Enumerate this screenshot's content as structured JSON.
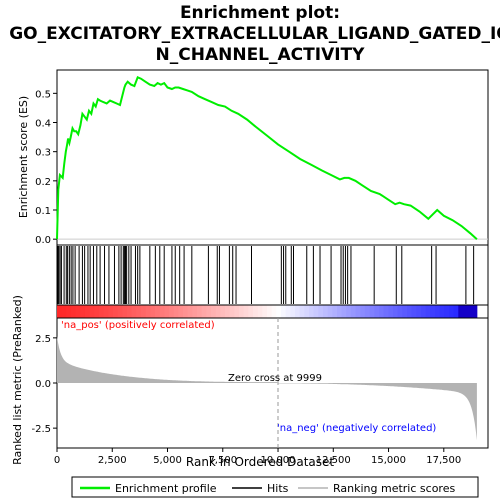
{
  "chart_data": {
    "type": "line",
    "title_line1": "Enrichment plot:",
    "title_line2": "GO_EXCITATORY_EXTRACELLULAR_LIGAND_GATED_IO",
    "title_line3": "N_CHANNEL_ACTIVITY",
    "xlabel": "Rank in Ordered Dataset",
    "ylabel_top": "Enrichment score (ES)",
    "ylabel_bottom": "Ranked list metric (PreRanked)",
    "x_ticks": [
      "0",
      "2,500",
      "5,000",
      "7,500",
      "10,000",
      "12,500",
      "15,000",
      "17,500"
    ],
    "x_tick_values": [
      0,
      2500,
      5000,
      7500,
      10000,
      12500,
      15000,
      17500
    ],
    "xlim": [
      0,
      19500
    ],
    "es_yticks": [
      "0.0",
      "0.1",
      "0.2",
      "0.3",
      "0.4",
      "0.5"
    ],
    "es_ytick_values": [
      0.0,
      0.1,
      0.2,
      0.3,
      0.4,
      0.5
    ],
    "es_ylim": [
      -0.02,
      0.58
    ],
    "metric_yticks": [
      "2.5",
      "0.0",
      "-2.5"
    ],
    "metric_ytick_values": [
      2.5,
      0.0,
      -2.5
    ],
    "metric_ylim": [
      -3.6,
      3.6
    ],
    "pos_label": "'na_pos' (positively correlated)",
    "neg_label": "'na_neg' (negatively correlated)",
    "zero_cross_label": "Zero cross at 9999",
    "zero_cross": 9999,
    "n_genes": 19000,
    "legend": [
      "Enrichment profile",
      "Hits",
      "Ranking metric scores"
    ],
    "colors": {
      "profile": "#00ee00",
      "hits": "#000000",
      "metric_fill": "#b3b3b3",
      "pos_bar": "#ff0000",
      "neg_bar": "#0000ff",
      "zero_line": "#999999"
    },
    "es_profile": {
      "x": [
        0,
        60,
        130,
        200,
        260,
        330,
        400,
        450,
        500,
        560,
        620,
        700,
        780,
        870,
        960,
        1060,
        1150,
        1250,
        1350,
        1450,
        1550,
        1650,
        1750,
        1850,
        1950,
        2100,
        2250,
        2400,
        2550,
        2700,
        2850,
        2950,
        3050,
        3100,
        3200,
        3350,
        3500,
        3650,
        3800,
        4000,
        4200,
        4400,
        4550,
        4700,
        4850,
        5000,
        5200,
        5350,
        5500,
        5700,
        5900,
        6100,
        6400,
        6700,
        7000,
        7300,
        7600,
        7900,
        8200,
        8600,
        9000,
        9500,
        10000,
        10500,
        11000,
        11500,
        12000,
        12400,
        12800,
        13000,
        13200,
        13500,
        13800,
        14200,
        14600,
        15000,
        15300,
        15500,
        15700,
        16000,
        16400,
        16800,
        17000,
        17200,
        17500,
        17900,
        18300,
        18700,
        19000
      ],
      "y": [
        0.0,
        0.17,
        0.22,
        0.215,
        0.21,
        0.26,
        0.3,
        0.32,
        0.345,
        0.33,
        0.35,
        0.38,
        0.37,
        0.37,
        0.36,
        0.39,
        0.43,
        0.42,
        0.41,
        0.44,
        0.43,
        0.465,
        0.455,
        0.48,
        0.475,
        0.47,
        0.465,
        0.475,
        0.47,
        0.465,
        0.46,
        0.49,
        0.52,
        0.53,
        0.54,
        0.53,
        0.525,
        0.555,
        0.55,
        0.54,
        0.53,
        0.525,
        0.535,
        0.53,
        0.535,
        0.52,
        0.515,
        0.52,
        0.52,
        0.515,
        0.51,
        0.505,
        0.49,
        0.48,
        0.47,
        0.46,
        0.455,
        0.44,
        0.43,
        0.41,
        0.385,
        0.355,
        0.325,
        0.3,
        0.275,
        0.255,
        0.235,
        0.22,
        0.205,
        0.21,
        0.21,
        0.2,
        0.185,
        0.165,
        0.155,
        0.135,
        0.12,
        0.125,
        0.12,
        0.115,
        0.095,
        0.07,
        0.085,
        0.1,
        0.08,
        0.065,
        0.045,
        0.02,
        0.0
      ]
    },
    "hits": [
      40,
      80,
      140,
      200,
      320,
      420,
      480,
      560,
      640,
      720,
      820,
      1000,
      1150,
      1250,
      1400,
      1500,
      1650,
      1800,
      1950,
      2150,
      2350,
      2600,
      2800,
      2900,
      3000,
      3050,
      3100,
      3150,
      3250,
      3350,
      3550,
      3650,
      3750,
      4200,
      4450,
      4650,
      4850,
      5200,
      5350,
      5550,
      5750,
      6100,
      6850,
      7250,
      7350,
      7800,
      7950,
      8100,
      8800,
      10150,
      10250,
      10350,
      10600,
      10700,
      11300,
      11600,
      11900,
      12400,
      12850,
      12950,
      13050,
      13150,
      13300,
      14350,
      15350,
      15600,
      16950,
      17150,
      18500,
      18850
    ]
  }
}
